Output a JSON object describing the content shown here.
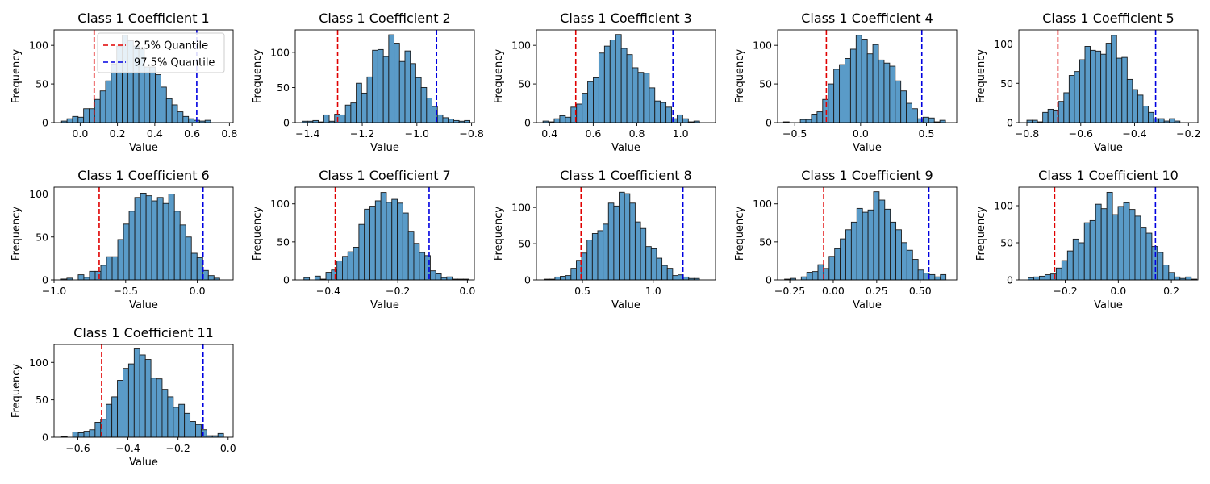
{
  "style": {
    "bar_fill": "#5a9bc8",
    "bar_edge": "#1a1a1a",
    "lower_color": "#e00000",
    "upper_color": "#0000e0"
  },
  "legend": {
    "location": "upper right of first subplot",
    "entries": [
      {
        "label": "2.5% Quantile",
        "color": "#e00000",
        "linestyle": "dashed"
      },
      {
        "label": "97.5% Quantile",
        "color": "#0000e0",
        "linestyle": "dashed"
      }
    ]
  },
  "chart_data": [
    {
      "type": "bar",
      "title": "Class 1 Coefficient 1",
      "xlabel": "Value",
      "ylabel": "Frequency",
      "xlim": [
        -0.14,
        0.82
      ],
      "ylim": [
        0,
        120
      ],
      "xticks": [
        {
          "value": 0.0,
          "label": "0.0"
        },
        {
          "value": 0.2,
          "label": "0.2"
        },
        {
          "value": 0.4,
          "label": "0.4"
        },
        {
          "value": 0.6,
          "label": "0.6"
        },
        {
          "value": 0.8,
          "label": "0.8"
        }
      ],
      "yticks": [
        {
          "value": 0,
          "label": "0"
        },
        {
          "value": 50,
          "label": "50"
        },
        {
          "value": 100,
          "label": "100"
        }
      ],
      "bin_start": -0.1,
      "bin_width": 0.0296,
      "values": [
        2,
        5,
        8,
        7,
        18,
        18,
        30,
        41,
        54,
        76,
        99,
        113,
        106,
        99,
        95,
        72,
        72,
        62,
        46,
        31,
        23,
        14,
        8,
        5,
        3,
        2,
        3
      ],
      "lower_quantile": 0.075,
      "upper_quantile": 0.625
    },
    {
      "type": "bar",
      "title": "Class 1 Coefficient 2",
      "xlabel": "Value",
      "ylabel": "Frequency",
      "xlim": [
        -1.445,
        -0.79
      ],
      "ylim": [
        0,
        132
      ],
      "xticks": [
        {
          "value": -1.4,
          "label": "−1.4"
        },
        {
          "value": -1.2,
          "label": "−1.2"
        },
        {
          "value": -1.0,
          "label": "−1.0"
        },
        {
          "value": -0.8,
          "label": "−0.8"
        }
      ],
      "yticks": [
        {
          "value": 0,
          "label": "0"
        },
        {
          "value": 50,
          "label": "50"
        },
        {
          "value": 100,
          "label": "100"
        }
      ],
      "bin_start": -1.42,
      "bin_width": 0.0198,
      "values": [
        2,
        2,
        3,
        1,
        11,
        2,
        12,
        11,
        25,
        28,
        56,
        42,
        65,
        103,
        104,
        94,
        125,
        113,
        87,
        102,
        84,
        64,
        50,
        35,
        23,
        11,
        7,
        5,
        3,
        2,
        3
      ],
      "lower_quantile": -1.29,
      "upper_quantile": -0.928
    },
    {
      "type": "bar",
      "title": "Class 1 Coefficient 3",
      "xlabel": "Value",
      "ylabel": "Frequency",
      "xlim": [
        0.34,
        1.16
      ],
      "ylim": [
        0,
        120
      ],
      "xticks": [
        {
          "value": 0.4,
          "label": "0.4"
        },
        {
          "value": 0.6,
          "label": "0.6"
        },
        {
          "value": 0.8,
          "label": "0.8"
        },
        {
          "value": 1.0,
          "label": "1.0"
        }
      ],
      "yticks": [
        {
          "value": 0,
          "label": "0"
        },
        {
          "value": 50,
          "label": "50"
        },
        {
          "value": 100,
          "label": "100"
        }
      ],
      "bin_start": 0.37,
      "bin_width": 0.0256,
      "values": [
        2,
        1,
        5,
        9,
        7,
        20,
        24,
        38,
        53,
        58,
        90,
        99,
        107,
        114,
        96,
        88,
        71,
        65,
        64,
        45,
        28,
        26,
        20,
        5,
        10,
        5,
        1,
        2
      ],
      "lower_quantile": 0.52,
      "upper_quantile": 0.965
    },
    {
      "type": "bar",
      "title": "Class 1 Coefficient 4",
      "xlabel": "Value",
      "ylabel": "Frequency",
      "xlim": [
        -0.63,
        0.73
      ],
      "ylim": [
        0,
        120
      ],
      "xticks": [
        {
          "value": -0.5,
          "label": "−0.5"
        },
        {
          "value": 0.0,
          "label": "0.0"
        },
        {
          "value": 0.5,
          "label": "0.5"
        }
      ],
      "yticks": [
        {
          "value": 0,
          "label": "0"
        },
        {
          "value": 50,
          "label": "50"
        },
        {
          "value": 100,
          "label": "100"
        }
      ],
      "bin_start": -0.585,
      "bin_width": 0.0424,
      "values": [
        1,
        0,
        0,
        4,
        4,
        11,
        14,
        30,
        50,
        69,
        75,
        83,
        95,
        113,
        108,
        89,
        101,
        81,
        77,
        73,
        54,
        41,
        25,
        18,
        5,
        7,
        6,
        1,
        3
      ],
      "lower_quantile": -0.26,
      "upper_quantile": 0.465
    },
    {
      "type": "bar",
      "title": "Class 1 Coefficient 5",
      "xlabel": "Value",
      "ylabel": "Frequency",
      "xlim": [
        -0.83,
        -0.165
      ],
      "ylim": [
        0,
        118
      ],
      "xticks": [
        {
          "value": -0.8,
          "label": "−0.8"
        },
        {
          "value": -0.6,
          "label": "−0.6"
        },
        {
          "value": -0.4,
          "label": "−0.4"
        },
        {
          "value": -0.2,
          "label": "−0.2"
        }
      ],
      "yticks": [
        {
          "value": 0,
          "label": "0"
        },
        {
          "value": 50,
          "label": "50"
        },
        {
          "value": 100,
          "label": "100"
        }
      ],
      "bin_start": -0.8,
      "bin_width": 0.0196,
      "values": [
        3,
        3,
        1,
        13,
        17,
        16,
        27,
        38,
        60,
        65,
        80,
        97,
        92,
        91,
        87,
        101,
        111,
        82,
        83,
        55,
        42,
        35,
        21,
        13,
        5,
        5,
        2,
        5,
        2
      ],
      "lower_quantile": -0.685,
      "upper_quantile": -0.322
    },
    {
      "type": "bar",
      "title": "Class 1 Coefficient 6",
      "xlabel": "Value",
      "ylabel": "Frequency",
      "xlim": [
        -1.0,
        0.25
      ],
      "ylim": [
        0,
        108
      ],
      "xticks": [
        {
          "value": -1.0,
          "label": "−1.0"
        },
        {
          "value": -0.5,
          "label": "−0.5"
        },
        {
          "value": 0.0,
          "label": "0.0"
        }
      ],
      "yticks": [
        {
          "value": 0,
          "label": "0"
        },
        {
          "value": 50,
          "label": "50"
        },
        {
          "value": 100,
          "label": "100"
        }
      ],
      "bin_start": -0.95,
      "bin_width": 0.0395,
      "values": [
        1,
        2,
        0,
        6,
        3,
        10,
        10,
        17,
        27,
        27,
        47,
        65,
        80,
        96,
        101,
        98,
        92,
        96,
        89,
        100,
        80,
        64,
        50,
        31,
        26,
        11,
        5,
        2
      ],
      "lower_quantile": -0.685,
      "upper_quantile": 0.04
    },
    {
      "type": "bar",
      "title": "Class 1 Coefficient 7",
      "xlabel": "Value",
      "ylabel": "Frequency",
      "xlim": [
        -0.495,
        0.02
      ],
      "ylim": [
        0,
        122
      ],
      "xticks": [
        {
          "value": -0.4,
          "label": "−0.4"
        },
        {
          "value": -0.2,
          "label": "−0.2"
        },
        {
          "value": 0.0,
          "label": "0.0"
        }
      ],
      "yticks": [
        {
          "value": 0,
          "label": "0"
        },
        {
          "value": 50,
          "label": "50"
        },
        {
          "value": 100,
          "label": "100"
        }
      ],
      "bin_start": -0.47,
      "bin_width": 0.0158,
      "values": [
        3,
        0,
        5,
        1,
        10,
        13,
        25,
        31,
        37,
        43,
        73,
        93,
        97,
        104,
        115,
        102,
        106,
        101,
        88,
        64,
        48,
        36,
        32,
        12,
        8,
        3,
        4,
        1,
        1,
        1
      ],
      "lower_quantile": -0.38,
      "upper_quantile": -0.11
    },
    {
      "type": "bar",
      "title": "Class 1 Coefficient 8",
      "xlabel": "Value",
      "ylabel": "Frequency",
      "xlim": [
        0.175,
        1.44
      ],
      "ylim": [
        0,
        128
      ],
      "xticks": [
        {
          "value": 0.5,
          "label": "0.5"
        },
        {
          "value": 1.0,
          "label": "1.0"
        }
      ],
      "yticks": [
        {
          "value": 0,
          "label": "0"
        },
        {
          "value": 50,
          "label": "50"
        },
        {
          "value": 100,
          "label": "100"
        }
      ],
      "bin_start": 0.23,
      "bin_width": 0.0378,
      "values": [
        1,
        1,
        4,
        5,
        6,
        16,
        27,
        37,
        55,
        64,
        68,
        77,
        106,
        102,
        121,
        119,
        106,
        80,
        71,
        46,
        43,
        30,
        20,
        16,
        6,
        7,
        4,
        2,
        2
      ],
      "lower_quantile": 0.49,
      "upper_quantile": 1.21
    },
    {
      "type": "bar",
      "title": "Class 1 Coefficient 9",
      "xlabel": "Value",
      "ylabel": "Frequency",
      "xlim": [
        -0.32,
        0.71
      ],
      "ylim": [
        0,
        122
      ],
      "xticks": [
        {
          "value": -0.25,
          "label": "−0.25"
        },
        {
          "value": 0.0,
          "label": "0.00"
        },
        {
          "value": 0.25,
          "label": "0.25"
        },
        {
          "value": 0.5,
          "label": "0.50"
        }
      ],
      "yticks": [
        {
          "value": 0,
          "label": "0"
        },
        {
          "value": 50,
          "label": "50"
        },
        {
          "value": 100,
          "label": "100"
        }
      ],
      "bin_start": -0.28,
      "bin_width": 0.032,
      "values": [
        1,
        2,
        0,
        4,
        10,
        11,
        20,
        15,
        31,
        41,
        54,
        66,
        76,
        94,
        89,
        92,
        116,
        105,
        93,
        76,
        66,
        49,
        39,
        27,
        13,
        9,
        7,
        4,
        7
      ],
      "lower_quantile": -0.055,
      "upper_quantile": 0.55
    },
    {
      "type": "bar",
      "title": "Class 1 Coefficient 10",
      "xlabel": "Value",
      "ylabel": "Frequency",
      "xlim": [
        -0.375,
        0.3
      ],
      "ylim": [
        0,
        125
      ],
      "xticks": [
        {
          "value": -0.2,
          "label": "−0.2"
        },
        {
          "value": 0.0,
          "label": "0.0"
        },
        {
          "value": 0.2,
          "label": "0.2"
        }
      ],
      "yticks": [
        {
          "value": 0,
          "label": "0"
        },
        {
          "value": 50,
          "label": "50"
        },
        {
          "value": 100,
          "label": "100"
        }
      ],
      "bin_start": -0.34,
      "bin_width": 0.0212,
      "values": [
        3,
        4,
        5,
        7,
        8,
        16,
        26,
        39,
        55,
        50,
        77,
        80,
        102,
        96,
        118,
        88,
        99,
        104,
        95,
        86,
        70,
        63,
        45,
        37,
        20,
        10,
        4,
        2,
        4,
        1
      ],
      "lower_quantile": -0.24,
      "upper_quantile": 0.14
    },
    {
      "type": "bar",
      "title": "Class 1 Coefficient 11",
      "xlabel": "Value",
      "ylabel": "Frequency",
      "xlim": [
        -0.695,
        0.02
      ],
      "ylim": [
        0,
        124
      ],
      "xticks": [
        {
          "value": -0.6,
          "label": "−0.6"
        },
        {
          "value": -0.4,
          "label": "−0.4"
        },
        {
          "value": -0.2,
          "label": "−0.2"
        },
        {
          "value": 0.0,
          "label": "0.0"
        }
      ],
      "yticks": [
        {
          "value": 0,
          "label": "0"
        },
        {
          "value": 50,
          "label": "50"
        },
        {
          "value": 100,
          "label": "100"
        }
      ],
      "bin_start": -0.665,
      "bin_width": 0.0223,
      "values": [
        1,
        0,
        7,
        6,
        8,
        10,
        20,
        24,
        44,
        54,
        76,
        92,
        98,
        118,
        110,
        104,
        79,
        78,
        64,
        54,
        40,
        44,
        32,
        21,
        17,
        10,
        2,
        2,
        5
      ],
      "lower_quantile": -0.505,
      "upper_quantile": -0.1
    }
  ]
}
